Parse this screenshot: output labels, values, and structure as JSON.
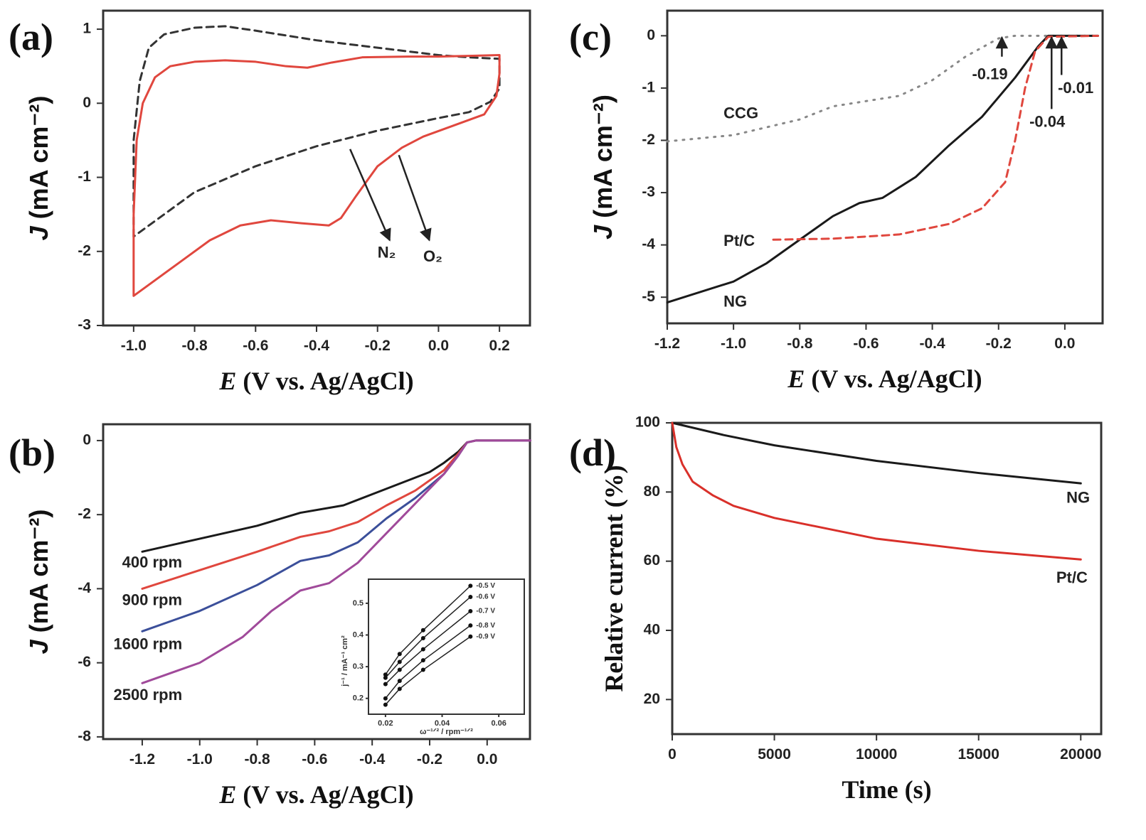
{
  "chart_data": [
    {
      "panel_label": "(a)",
      "type": "line",
      "xlabel_var": "E",
      "xlabel_rest": " (V vs. Ag/AgCl)",
      "ylabel_var": "J",
      "ylabel_rest": " (mA cm⁻²)",
      "xlim": [
        -1.1,
        0.3
      ],
      "ylim": [
        -3.0,
        1.25
      ],
      "xticks": [
        -1.0,
        -0.8,
        -0.6,
        -0.4,
        -0.2,
        0.0,
        0.2
      ],
      "xticklabels": [
        "-1.0",
        "-0.8",
        "-0.6",
        "-0.4",
        "-0.2",
        "0.0",
        "0.2"
      ],
      "yticks": [
        1,
        0,
        -1,
        -2,
        -3
      ],
      "yticklabels": [
        "1",
        "0",
        "-1",
        "-2",
        "-3"
      ],
      "series": [
        {
          "name": "N₂",
          "color": "#333333",
          "style": "dashed",
          "points": [
            [
              -1.0,
              -1.8
            ],
            [
              -1.0,
              -0.5
            ],
            [
              -0.98,
              0.3
            ],
            [
              -0.95,
              0.75
            ],
            [
              -0.9,
              0.93
            ],
            [
              -0.8,
              1.02
            ],
            [
              -0.7,
              1.04
            ],
            [
              -0.6,
              0.98
            ],
            [
              -0.4,
              0.85
            ],
            [
              -0.2,
              0.75
            ],
            [
              0.0,
              0.65
            ],
            [
              0.1,
              0.62
            ],
            [
              0.2,
              0.6
            ],
            [
              0.2,
              0.2
            ],
            [
              0.17,
              0.02
            ],
            [
              0.1,
              -0.12
            ],
            [
              0.0,
              -0.2
            ],
            [
              -0.2,
              -0.37
            ],
            [
              -0.4,
              -0.58
            ],
            [
              -0.6,
              -0.85
            ],
            [
              -0.8,
              -1.2
            ],
            [
              -0.9,
              -1.5
            ],
            [
              -1.0,
              -1.8
            ]
          ]
        },
        {
          "name": "O₂",
          "color": "#e0473e",
          "style": "solid",
          "points": [
            [
              -1.0,
              -2.6
            ],
            [
              -1.0,
              -1.5
            ],
            [
              -0.99,
              -0.5
            ],
            [
              -0.97,
              0.0
            ],
            [
              -0.93,
              0.35
            ],
            [
              -0.88,
              0.5
            ],
            [
              -0.8,
              0.56
            ],
            [
              -0.7,
              0.58
            ],
            [
              -0.6,
              0.56
            ],
            [
              -0.5,
              0.5
            ],
            [
              -0.43,
              0.48
            ],
            [
              -0.35,
              0.55
            ],
            [
              -0.25,
              0.62
            ],
            [
              -0.1,
              0.63
            ],
            [
              0.0,
              0.63
            ],
            [
              0.1,
              0.64
            ],
            [
              0.2,
              0.65
            ],
            [
              0.2,
              0.4
            ],
            [
              0.19,
              0.1
            ],
            [
              0.15,
              -0.15
            ],
            [
              0.05,
              -0.3
            ],
            [
              -0.05,
              -0.45
            ],
            [
              -0.12,
              -0.6
            ],
            [
              -0.2,
              -0.85
            ],
            [
              -0.27,
              -1.25
            ],
            [
              -0.32,
              -1.55
            ],
            [
              -0.36,
              -1.65
            ],
            [
              -0.45,
              -1.62
            ],
            [
              -0.55,
              -1.58
            ],
            [
              -0.65,
              -1.65
            ],
            [
              -0.75,
              -1.85
            ],
            [
              -0.85,
              -2.15
            ],
            [
              -0.95,
              -2.45
            ],
            [
              -1.0,
              -2.6
            ]
          ]
        }
      ],
      "arrows": [
        {
          "from": [
            -0.29,
            -0.62
          ],
          "to": [
            -0.16,
            -1.85
          ]
        },
        {
          "from": [
            -0.13,
            -0.7
          ],
          "to": [
            -0.03,
            -1.85
          ]
        }
      ],
      "annotations": [
        {
          "text": "N₂",
          "at": [
            -0.2,
            -2.03
          ]
        },
        {
          "text": "O₂",
          "at": [
            -0.05,
            -2.08
          ]
        }
      ]
    },
    {
      "panel_label": "(b)",
      "type": "line",
      "xlabel_var": "E",
      "xlabel_rest": " (V vs. Ag/AgCl)",
      "ylabel_var": "J",
      "ylabel_rest": " (mA cm⁻²)",
      "xlim": [
        -1.336,
        0.149
      ],
      "ylim": [
        -8.06,
        0.44
      ],
      "xticks": [
        -1.2,
        -1.0,
        -0.8,
        -0.6,
        -0.4,
        -0.2,
        0.0
      ],
      "xticklabels": [
        "-1.2",
        "-1.0",
        "-0.8",
        "-0.6",
        "-0.4",
        "-0.2",
        "0.0"
      ],
      "yticks": [
        0,
        -2,
        -4,
        -6,
        -8
      ],
      "yticklabels": [
        "0",
        "-2",
        "-4",
        "-6",
        "-8"
      ],
      "series": [
        {
          "name": "400 rpm",
          "color": "#1a1a1a",
          "style": "solid",
          "points": [
            [
              -1.2,
              -3.0
            ],
            [
              -1.0,
              -2.65
            ],
            [
              -0.8,
              -2.3
            ],
            [
              -0.65,
              -1.95
            ],
            [
              -0.5,
              -1.75
            ],
            [
              -0.4,
              -1.45
            ],
            [
              -0.3,
              -1.15
            ],
            [
              -0.2,
              -0.85
            ],
            [
              -0.15,
              -0.6
            ],
            [
              -0.1,
              -0.3
            ],
            [
              -0.07,
              -0.05
            ],
            [
              -0.04,
              0
            ],
            [
              0.15,
              0
            ]
          ]
        },
        {
          "name": "900 rpm",
          "color": "#e0473e",
          "style": "solid",
          "points": [
            [
              -1.2,
              -4.0
            ],
            [
              -1.0,
              -3.5
            ],
            [
              -0.8,
              -3.0
            ],
            [
              -0.65,
              -2.6
            ],
            [
              -0.55,
              -2.45
            ],
            [
              -0.45,
              -2.2
            ],
            [
              -0.35,
              -1.75
            ],
            [
              -0.25,
              -1.35
            ],
            [
              -0.15,
              -0.8
            ],
            [
              -0.1,
              -0.35
            ],
            [
              -0.07,
              -0.05
            ],
            [
              -0.04,
              0
            ],
            [
              0.15,
              0
            ]
          ]
        },
        {
          "name": "1600 rpm",
          "color": "#3b4f9a",
          "style": "solid",
          "points": [
            [
              -1.2,
              -5.15
            ],
            [
              -1.0,
              -4.6
            ],
            [
              -0.8,
              -3.9
            ],
            [
              -0.65,
              -3.25
            ],
            [
              -0.55,
              -3.1
            ],
            [
              -0.45,
              -2.75
            ],
            [
              -0.35,
              -2.1
            ],
            [
              -0.25,
              -1.55
            ],
            [
              -0.15,
              -0.9
            ],
            [
              -0.1,
              -0.4
            ],
            [
              -0.07,
              -0.05
            ],
            [
              -0.04,
              0
            ],
            [
              0.15,
              0
            ]
          ]
        },
        {
          "name": "2500 rpm",
          "color": "#a04a9a",
          "style": "solid",
          "points": [
            [
              -1.2,
              -6.55
            ],
            [
              -1.0,
              -6.0
            ],
            [
              -0.85,
              -5.3
            ],
            [
              -0.75,
              -4.6
            ],
            [
              -0.65,
              -4.05
            ],
            [
              -0.55,
              -3.85
            ],
            [
              -0.45,
              -3.3
            ],
            [
              -0.35,
              -2.5
            ],
            [
              -0.25,
              -1.7
            ],
            [
              -0.15,
              -0.9
            ],
            [
              -0.1,
              -0.4
            ],
            [
              -0.07,
              -0.05
            ],
            [
              -0.04,
              0
            ],
            [
              0.15,
              0
            ]
          ]
        }
      ],
      "arrows": [],
      "annotations": [
        {
          "text": "400 rpm",
          "at": [
            -1.27,
            -3.31
          ]
        },
        {
          "text": "900 rpm",
          "at": [
            -1.27,
            -4.33
          ]
        },
        {
          "text": "1600 rpm",
          "at": [
            -1.3,
            -5.52
          ]
        },
        {
          "text": "2500 rpm",
          "at": [
            -1.3,
            -6.89
          ]
        }
      ],
      "inset": {
        "type": "scatter",
        "xlabel": "ω⁻¹ᐟ² / rpm⁻¹ᐟ²",
        "ylabel": "j⁻¹ / mA⁻¹ cm²",
        "xlim": [
          0.014,
          0.069
        ],
        "ylim": [
          0.15,
          0.576
        ],
        "xticks": [
          0.02,
          0.04,
          0.06
        ],
        "xticklabels": [
          "0.02",
          "0.04",
          "0.06"
        ],
        "yticks": [
          0.2,
          0.3,
          0.4,
          0.5
        ],
        "yticklabels": [
          "0.2",
          "0.3",
          "0.4",
          "0.5"
        ],
        "x": [
          0.02,
          0.025,
          0.0333,
          0.05
        ],
        "series": [
          {
            "name": "-0.5 V",
            "values": [
              0.275,
              0.34,
              0.415,
              0.555
            ]
          },
          {
            "name": "-0.6 V",
            "values": [
              0.265,
              0.315,
              0.39,
              0.52
            ]
          },
          {
            "name": "-0.7 V",
            "values": [
              0.245,
              0.29,
              0.355,
              0.475
            ]
          },
          {
            "name": "-0.8 V",
            "values": [
              0.2,
              0.255,
              0.32,
              0.43
            ]
          },
          {
            "name": "-0.9 V",
            "values": [
              0.18,
              0.23,
              0.29,
              0.395
            ]
          }
        ]
      }
    },
    {
      "panel_label": "(c)",
      "type": "line",
      "xlabel_var": "E",
      "xlabel_rest": " (V vs. Ag/AgCl)",
      "ylabel_var": "J",
      "ylabel_rest": " (mA cm⁻²)",
      "xlim": [
        -1.2,
        0.114
      ],
      "ylim": [
        -5.5,
        0.48
      ],
      "xticks": [
        -1.2,
        -1.0,
        -0.8,
        -0.6,
        -0.4,
        -0.2,
        0.0
      ],
      "xticklabels": [
        "-1.2",
        "-1.0",
        "-0.8",
        "-0.6",
        "-0.4",
        "-0.2",
        "0.0"
      ],
      "yticks": [
        0,
        -1,
        -2,
        -3,
        -4,
        -5
      ],
      "yticklabels": [
        "0",
        "-1",
        "-2",
        "-3",
        "-4",
        "-5"
      ],
      "series": [
        {
          "name": "CCG",
          "color": "#888888",
          "style": "dotted",
          "points": [
            [
              -1.2,
              -2.02
            ],
            [
              -1.0,
              -1.9
            ],
            [
              -0.8,
              -1.6
            ],
            [
              -0.7,
              -1.35
            ],
            [
              -0.6,
              -1.25
            ],
            [
              -0.5,
              -1.15
            ],
            [
              -0.4,
              -0.85
            ],
            [
              -0.3,
              -0.4
            ],
            [
              -0.2,
              -0.05
            ],
            [
              -0.15,
              0
            ],
            [
              0.1,
              0
            ]
          ]
        },
        {
          "name": "NG",
          "color": "#1a1a1a",
          "style": "solid",
          "points": [
            [
              -1.2,
              -5.1
            ],
            [
              -1.0,
              -4.7
            ],
            [
              -0.9,
              -4.35
            ],
            [
              -0.8,
              -3.9
            ],
            [
              -0.7,
              -3.45
            ],
            [
              -0.62,
              -3.2
            ],
            [
              -0.55,
              -3.1
            ],
            [
              -0.45,
              -2.7
            ],
            [
              -0.35,
              -2.1
            ],
            [
              -0.25,
              -1.55
            ],
            [
              -0.15,
              -0.8
            ],
            [
              -0.08,
              -0.2
            ],
            [
              -0.05,
              0
            ],
            [
              0.1,
              0
            ]
          ]
        },
        {
          "name": "Pt/C",
          "color": "#e0473e",
          "style": "dashed",
          "points": [
            [
              -0.88,
              -3.9
            ],
            [
              -0.7,
              -3.88
            ],
            [
              -0.5,
              -3.8
            ],
            [
              -0.35,
              -3.6
            ],
            [
              -0.25,
              -3.3
            ],
            [
              -0.18,
              -2.8
            ],
            [
              -0.15,
              -2.0
            ],
            [
              -0.12,
              -1.0
            ],
            [
              -0.09,
              -0.3
            ],
            [
              -0.05,
              -0.02
            ],
            [
              0.1,
              0
            ]
          ]
        }
      ],
      "arrows": [
        {
          "from": [
            -0.19,
            -0.4
          ],
          "to": [
            -0.19,
            -0.03
          ]
        },
        {
          "from": [
            -0.04,
            -1.4
          ],
          "to": [
            -0.04,
            -0.03
          ]
        },
        {
          "from": [
            -0.01,
            -0.75
          ],
          "to": [
            -0.01,
            -0.03
          ]
        }
      ],
      "annotations": [
        {
          "text": "CCG",
          "at": [
            -1.03,
            -1.5
          ]
        },
        {
          "text": "Pt/C",
          "at": [
            -1.03,
            -3.94
          ]
        },
        {
          "text": "NG",
          "at": [
            -1.03,
            -5.1
          ]
        },
        {
          "text": "-0.19",
          "at": [
            -0.28,
            -0.75
          ]
        },
        {
          "text": "-0.04",
          "at": [
            -0.107,
            -1.66
          ]
        },
        {
          "text": "-0.01",
          "at": [
            -0.021,
            -1.02
          ]
        }
      ]
    },
    {
      "panel_label": "(d)",
      "type": "line",
      "xlabel_var": "",
      "xlabel_rest": "Time (s)",
      "ylabel_var": "",
      "ylabel_rest": "Relative current (%)",
      "xlim": [
        0,
        21000
      ],
      "ylim": [
        10,
        100
      ],
      "xticks": [
        0,
        5000,
        10000,
        15000,
        20000
      ],
      "xticklabels": [
        "0",
        "5000",
        "10000",
        "15000",
        "20000"
      ],
      "yticks": [
        100,
        80,
        60,
        40,
        20
      ],
      "yticklabels": [
        "100",
        "80",
        "60",
        "40",
        "20"
      ],
      "series": [
        {
          "name": "NG",
          "color": "#1a1a1a",
          "style": "solid",
          "points": [
            [
              0,
              100
            ],
            [
              2500,
              96.5
            ],
            [
              5000,
              93.5
            ],
            [
              10000,
              89
            ],
            [
              15000,
              85.5
            ],
            [
              20000,
              82.5
            ]
          ]
        },
        {
          "name": "Pt/C",
          "color": "#d9302a",
          "style": "solid",
          "points": [
            [
              0,
              100
            ],
            [
              200,
              93
            ],
            [
              500,
              88
            ],
            [
              1000,
              83
            ],
            [
              2000,
              79
            ],
            [
              3000,
              76
            ],
            [
              5000,
              72.5
            ],
            [
              10000,
              66.5
            ],
            [
              15000,
              63
            ],
            [
              20000,
              60.5
            ]
          ]
        }
      ],
      "arrows": [],
      "annotations": [
        {
          "text": "NG",
          "at": [
            19300,
            78.1
          ]
        },
        {
          "text": "Pt/C",
          "at": [
            18800,
            55
          ]
        }
      ]
    }
  ]
}
